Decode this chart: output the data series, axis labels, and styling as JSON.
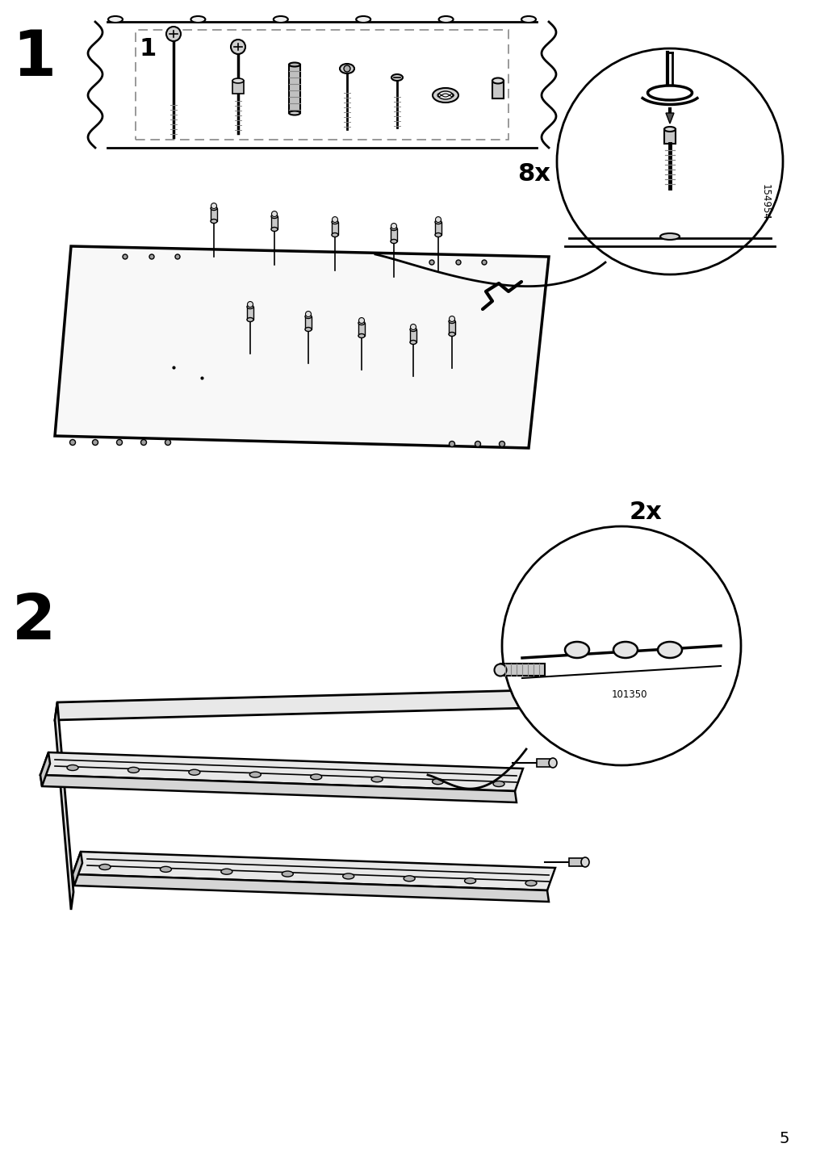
{
  "page_number": "5",
  "background_color": "#ffffff",
  "line_color": "#000000",
  "step1_number": "1",
  "step2_number": "2",
  "count_8x": "8x",
  "count_2x": "2x",
  "part_number_1": "154954",
  "part_number_2": "101350",
  "fig_width": 10.12,
  "fig_height": 14.32,
  "dpi": 100
}
